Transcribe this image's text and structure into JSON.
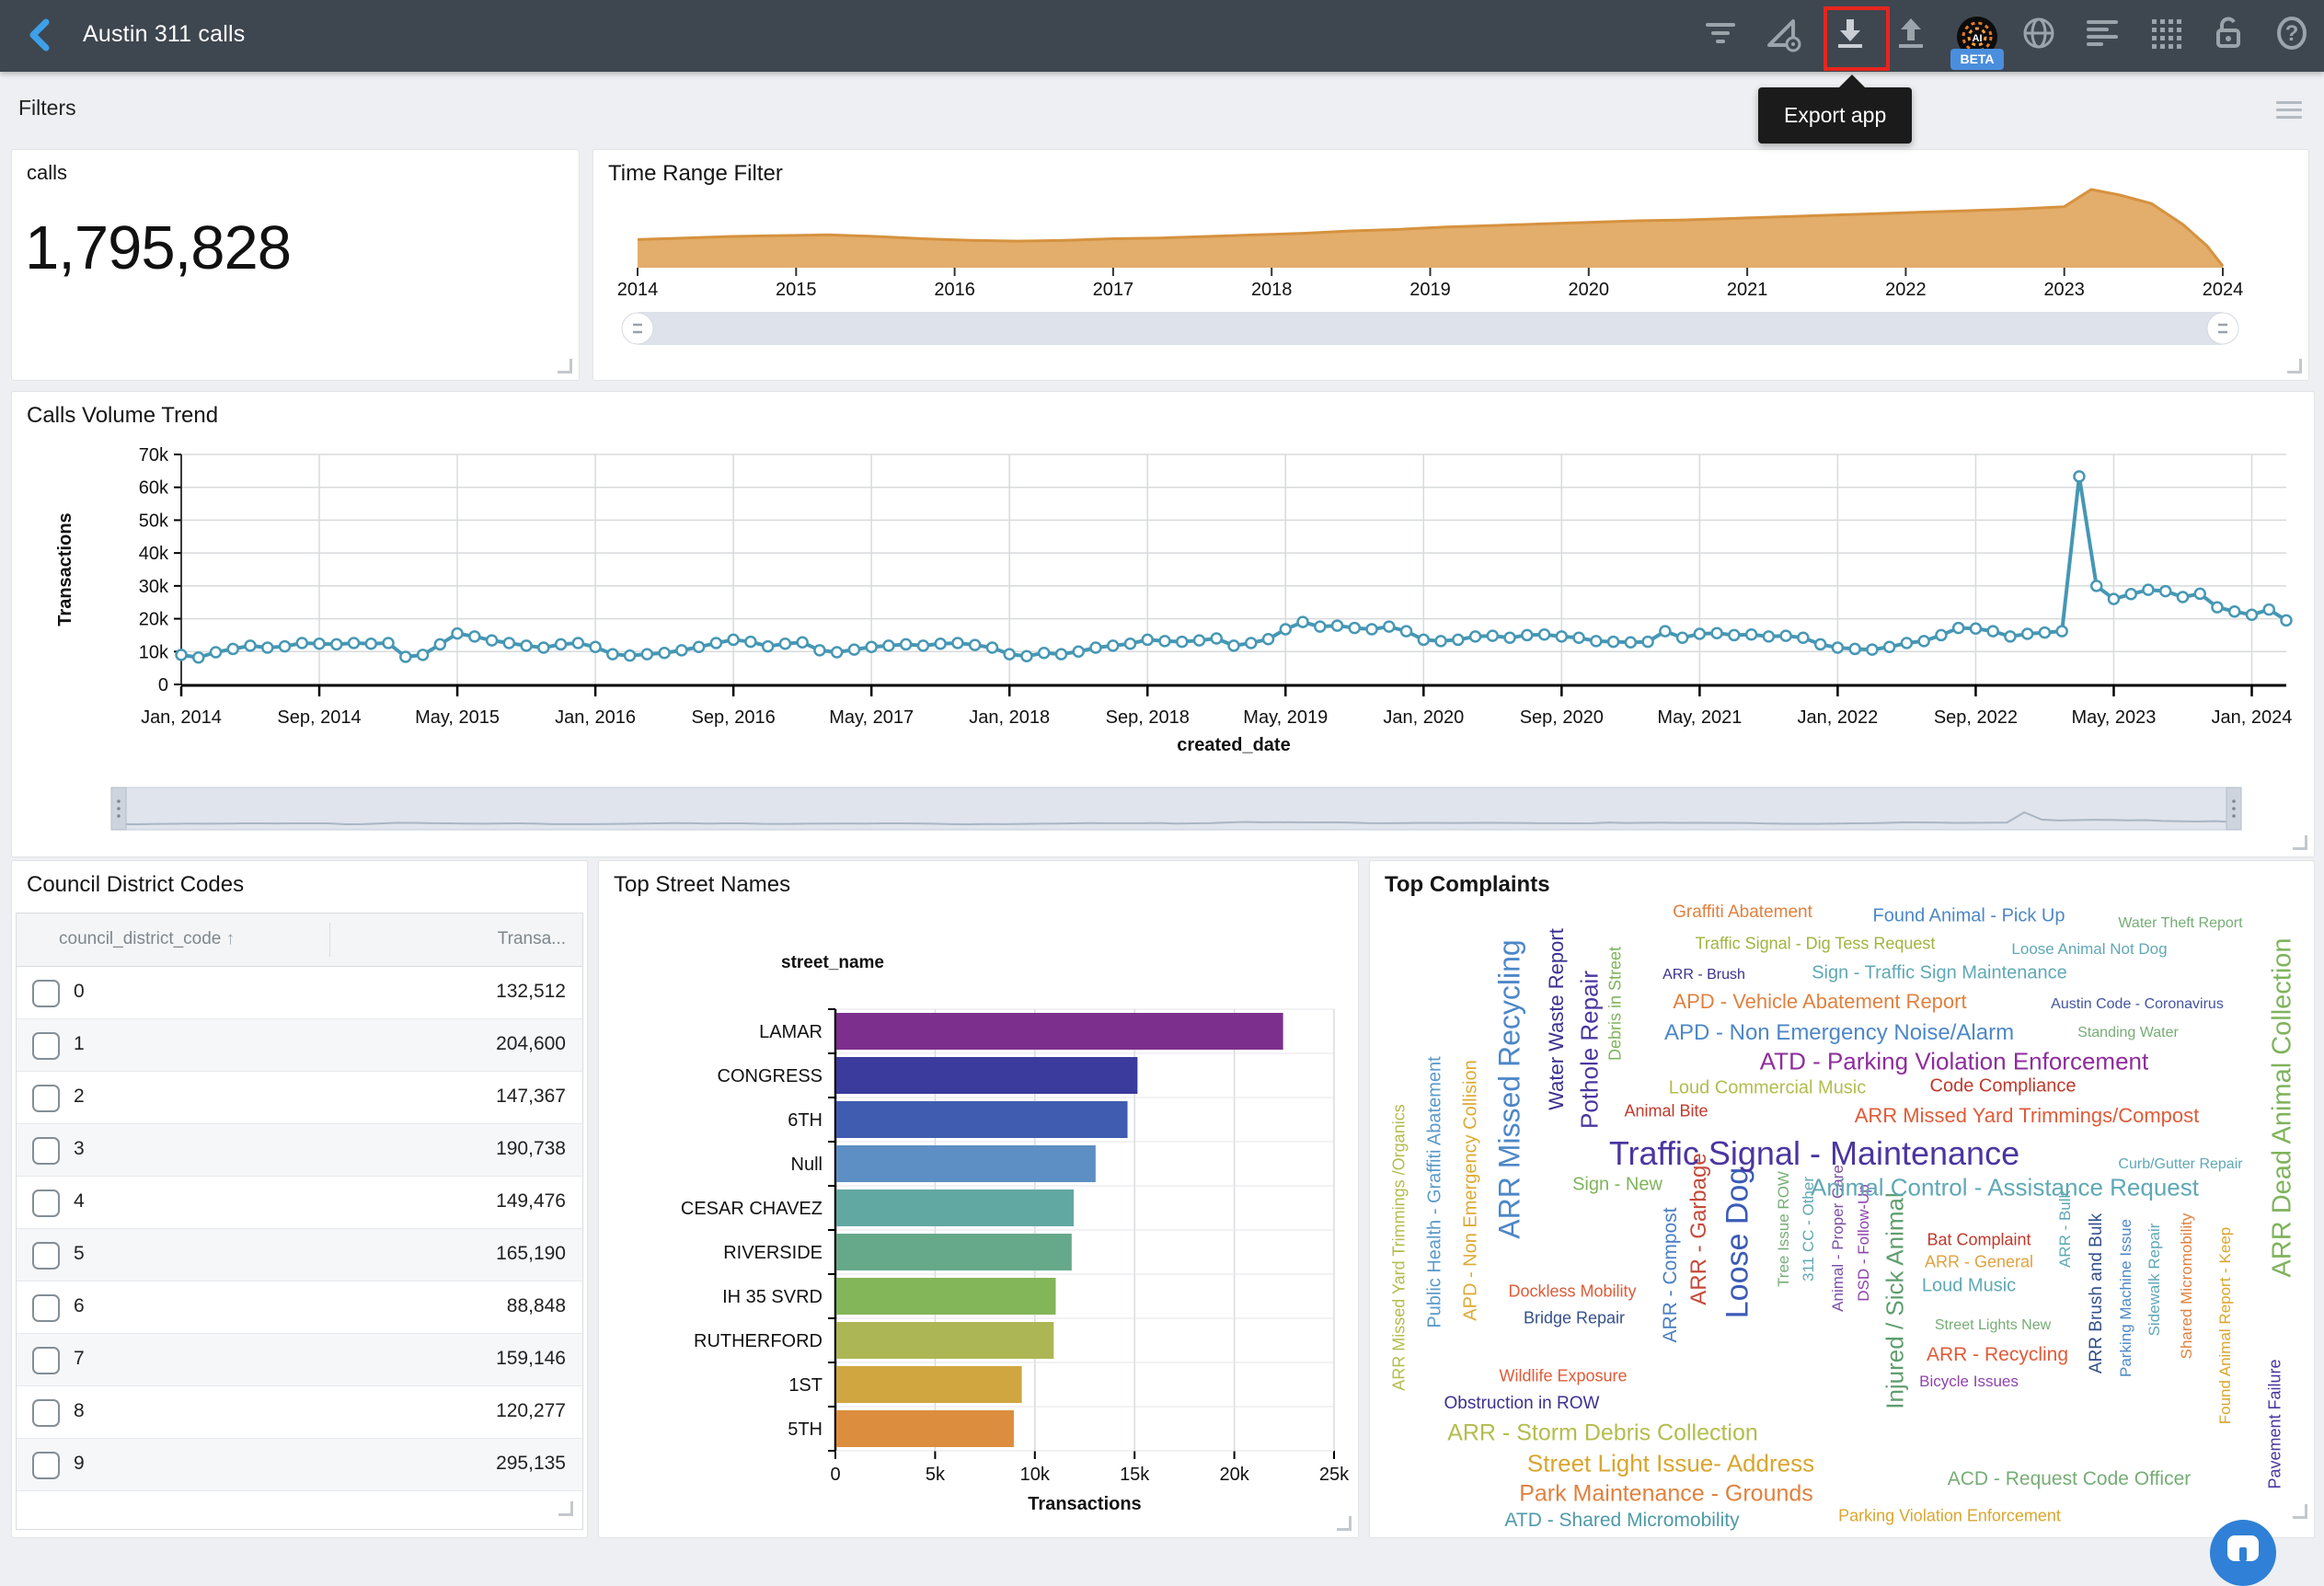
{
  "header": {
    "title": "Austin 311 calls",
    "tooltip": "Export app",
    "beta_label": "BETA",
    "bar_color": "#3e4650",
    "accent_color": "#3da0e8",
    "highlight_color": "#e8251d",
    "icons": [
      "filter-icon",
      "measure-settings-icon",
      "download-icon",
      "upload-icon",
      "ai-logo",
      "globe-icon",
      "align-left-icon",
      "grid-dots-icon",
      "lock-open-icon",
      "help-icon"
    ]
  },
  "filters_bar": {
    "label": "Filters",
    "menu_icon": "hamburger-icon"
  },
  "panels": {
    "kpi": {
      "title": "calls",
      "value": "1,795,828"
    },
    "time_range": {
      "title": "Time Range Filter"
    },
    "volume": {
      "title": "Calls Volume Trend"
    },
    "council": {
      "title": "Council District Codes",
      "columns": [
        "council_district_code",
        "Transa..."
      ],
      "sort_icon": "sort-ascending-icon",
      "rows": [
        {
          "code": "0",
          "transactions": "132,512"
        },
        {
          "code": "1",
          "transactions": "204,600"
        },
        {
          "code": "2",
          "transactions": "147,367"
        },
        {
          "code": "3",
          "transactions": "190,738"
        },
        {
          "code": "4",
          "transactions": "149,476"
        },
        {
          "code": "5",
          "transactions": "165,190"
        },
        {
          "code": "6",
          "transactions": "88,848"
        },
        {
          "code": "7",
          "transactions": "159,146"
        },
        {
          "code": "8",
          "transactions": "120,277"
        },
        {
          "code": "9",
          "transactions": "295,135"
        }
      ]
    },
    "streets": {
      "title": "Top Street Names"
    },
    "complaints": {
      "title": "Top Complaints"
    }
  },
  "chart_data": [
    {
      "type": "area",
      "name": "time-range-filter",
      "title": "Time Range Filter",
      "x_tick_labels": [
        "2014",
        "2015",
        "2016",
        "2017",
        "2018",
        "2019",
        "2020",
        "2021",
        "2022",
        "2023",
        "2024"
      ],
      "x_domain": [
        2014,
        2024
      ],
      "fill_color": "#e2a963",
      "line_color": "#d6923f",
      "profile": [
        [
          0,
          0.36
        ],
        [
          0.3,
          0.38
        ],
        [
          0.6,
          0.4
        ],
        [
          0.9,
          0.41
        ],
        [
          1.2,
          0.42
        ],
        [
          1.5,
          0.4
        ],
        [
          1.8,
          0.37
        ],
        [
          2.1,
          0.35
        ],
        [
          2.4,
          0.34
        ],
        [
          2.7,
          0.35
        ],
        [
          3.0,
          0.37
        ],
        [
          3.3,
          0.38
        ],
        [
          3.6,
          0.4
        ],
        [
          3.9,
          0.42
        ],
        [
          4.2,
          0.44
        ],
        [
          4.5,
          0.47
        ],
        [
          4.8,
          0.49
        ],
        [
          5.1,
          0.52
        ],
        [
          5.4,
          0.54
        ],
        [
          5.7,
          0.56
        ],
        [
          6.0,
          0.58
        ],
        [
          6.3,
          0.6
        ],
        [
          6.6,
          0.61
        ],
        [
          6.9,
          0.63
        ],
        [
          7.2,
          0.65
        ],
        [
          7.5,
          0.67
        ],
        [
          7.8,
          0.69
        ],
        [
          8.1,
          0.71
        ],
        [
          8.4,
          0.73
        ],
        [
          8.7,
          0.75
        ],
        [
          9.0,
          0.78
        ],
        [
          9.17,
          1.0
        ],
        [
          9.35,
          0.93
        ],
        [
          9.55,
          0.82
        ],
        [
          9.75,
          0.55
        ],
        [
          9.9,
          0.28
        ],
        [
          10,
          0.02
        ]
      ]
    },
    {
      "type": "line",
      "name": "calls-volume-trend",
      "title": "Calls Volume Trend",
      "ylabel": "Transactions",
      "xlabel": "created_date",
      "ylim": [
        0,
        70000
      ],
      "y_tick_labels": [
        "0",
        "10k",
        "20k",
        "30k",
        "40k",
        "50k",
        "60k",
        "70k"
      ],
      "x_start": "2014-01",
      "x_interval": "month",
      "x_tick_labels": [
        "Jan, 2014",
        "Sep, 2014",
        "May, 2015",
        "Jan, 2016",
        "Sep, 2016",
        "May, 2017",
        "Jan, 2018",
        "Sep, 2018",
        "May, 2019",
        "Jan, 2020",
        "Sep, 2020",
        "May, 2021",
        "Jan, 2022",
        "Sep, 2022",
        "May, 2023",
        "Jan, 2024"
      ],
      "color": "#4697b4",
      "values": [
        9000,
        8200,
        9800,
        10800,
        11800,
        11200,
        11600,
        12600,
        12400,
        12200,
        12600,
        12400,
        12600,
        8400,
        9000,
        12200,
        15500,
        14600,
        13400,
        12600,
        11800,
        11200,
        12200,
        12600,
        11400,
        9200,
        8800,
        9200,
        9600,
        10400,
        11400,
        12600,
        13600,
        13000,
        11600,
        12400,
        12800,
        10400,
        9800,
        10600,
        11400,
        11800,
        12200,
        11800,
        12400,
        12600,
        12000,
        11200,
        9200,
        8600,
        9600,
        9200,
        10000,
        11200,
        11800,
        12400,
        13600,
        13200,
        13000,
        13400,
        14000,
        11800,
        12600,
        13800,
        16800,
        19000,
        17600,
        17900,
        17200,
        16800,
        17600,
        16200,
        13600,
        13200,
        13600,
        14600,
        14800,
        14200,
        15000,
        15200,
        14600,
        14200,
        13200,
        13000,
        12800,
        13000,
        16200,
        14200,
        15400,
        15600,
        15000,
        15200,
        14600,
        14800,
        14200,
        12200,
        11200,
        10800,
        10600,
        11400,
        12600,
        13200,
        15000,
        17200,
        17000,
        16200,
        14600,
        15400,
        15800,
        16200,
        63300,
        30000,
        26000,
        27500,
        28800,
        28400,
        26600,
        27600,
        23500,
        22200,
        21200,
        22800,
        19500
      ]
    },
    {
      "type": "bar",
      "name": "top-street-names",
      "title": "Top Street Names",
      "axis_title": "street_name",
      "xlabel": "Transactions",
      "xlim": [
        0,
        25000
      ],
      "x_tick_labels": [
        "0",
        "5k",
        "10k",
        "15k",
        "20k",
        "25k"
      ],
      "categories": [
        "LAMAR",
        "CONGRESS",
        "6TH",
        "Null",
        "CESAR CHAVEZ",
        "RIVERSIDE",
        "IH 35 SVRD",
        "RUTHERFORD",
        "1ST",
        "5TH"
      ],
      "values": [
        22400,
        15100,
        14600,
        13000,
        11900,
        11800,
        11000,
        10900,
        9300,
        8900
      ],
      "colors": [
        "#7d2f8d",
        "#3a3b9c",
        "#3f5cb0",
        "#5d8fc4",
        "#62a8a2",
        "#66a98a",
        "#83b559",
        "#adb654",
        "#d0a640",
        "#dc8e3e"
      ]
    },
    {
      "type": "wordcloud",
      "name": "top-complaints",
      "title": "Top Complaints",
      "words": [
        {
          "t": "ARR Missed Yard Trimmings /Organics",
          "c": "#b3bd4e",
          "s": 18,
          "x": 32,
          "y": 420,
          "r": 1
        },
        {
          "t": "Public Health - Graffiti Abatement",
          "c": "#5b9bc9",
          "s": 20,
          "x": 71,
          "y": 360,
          "r": 1
        },
        {
          "t": "APD - Non Emergency Collision",
          "c": "#ddaa33",
          "s": 20,
          "x": 110,
          "y": 358,
          "r": 1
        },
        {
          "t": "ARR Missed Recycling",
          "c": "#4d87c7",
          "s": 32,
          "x": 152,
          "y": 248,
          "r": 1
        },
        {
          "t": "Water Waste Report",
          "c": "#3b3191",
          "s": 22,
          "x": 203,
          "y": 172,
          "r": 1
        },
        {
          "t": "Pothole Repair",
          "c": "#4b35a0",
          "s": 26,
          "x": 239,
          "y": 205,
          "r": 1
        },
        {
          "t": "Debris in Street",
          "c": "#7fb35c",
          "s": 18,
          "x": 267,
          "y": 155,
          "r": 1
        },
        {
          "t": "ARR - Compost",
          "c": "#4a7ec2",
          "s": 21,
          "x": 327,
          "y": 450,
          "r": 1
        },
        {
          "t": "ARR - Garbage",
          "c": "#c44a3b",
          "s": 24,
          "x": 358,
          "y": 400,
          "r": 1
        },
        {
          "t": "Loose Dog",
          "c": "#3b5bb5",
          "s": 34,
          "x": 400,
          "y": 415,
          "r": 1
        },
        {
          "t": "Tree Issue ROW",
          "c": "#76ad76",
          "s": 17,
          "x": 450,
          "y": 400,
          "r": 1
        },
        {
          "t": "311 CC - Other",
          "c": "#5fa8b5",
          "s": 17,
          "x": 477,
          "y": 400,
          "r": 1
        },
        {
          "t": "Animal - Proper Care",
          "c": "#7b4fa6",
          "s": 17,
          "x": 509,
          "y": 410,
          "r": 1
        },
        {
          "t": "DSD - Follow-Up",
          "c": "#8e44ad",
          "s": 17,
          "x": 537,
          "y": 415,
          "r": 1
        },
        {
          "t": "Injured / Sick Animal",
          "c": "#5f9e6e",
          "s": 26,
          "x": 571,
          "y": 478,
          "r": 1
        },
        {
          "t": "ARR - Bulk",
          "c": "#5fa8b5",
          "s": 17,
          "x": 756,
          "y": 400,
          "r": 1
        },
        {
          "t": "ARR Brush and Bulk",
          "c": "#34518c",
          "s": 19,
          "x": 790,
          "y": 470,
          "r": 1
        },
        {
          "t": "Parking Machine Issue",
          "c": "#4d87c7",
          "s": 17,
          "x": 822,
          "y": 475,
          "r": 1
        },
        {
          "t": "Sidewalk Repair",
          "c": "#5fa8b5",
          "s": 17,
          "x": 853,
          "y": 455,
          "r": 1
        },
        {
          "t": "Shared Micromobility",
          "c": "#e0813f",
          "s": 17,
          "x": 888,
          "y": 462,
          "r": 1
        },
        {
          "t": "Found Animal Report - Keep",
          "c": "#d9a62e",
          "s": 17,
          "x": 930,
          "y": 505,
          "r": 1
        },
        {
          "t": "ARR Dead Animal Collection",
          "c": "#7fb35c",
          "s": 29,
          "x": 992,
          "y": 268,
          "r": 1
        },
        {
          "t": "Pavement Failure",
          "c": "#4b35a0",
          "s": 18,
          "x": 984,
          "y": 612,
          "r": 1
        },
        {
          "t": "Graffiti Abatement",
          "c": "#e0813f",
          "s": 19,
          "x": 405,
          "y": 56,
          "r": 0
        },
        {
          "t": "Found Animal - Pick Up",
          "c": "#4d87c7",
          "s": 20,
          "x": 651,
          "y": 60,
          "r": 0
        },
        {
          "t": "Water Theft Report",
          "c": "#76ad76",
          "s": 16,
          "x": 881,
          "y": 68,
          "r": 0
        },
        {
          "t": "Traffic Signal - Dig Tess Request",
          "c": "#a0b43f",
          "s": 18,
          "x": 484,
          "y": 90,
          "r": 0
        },
        {
          "t": "Loose Animal Not Dog",
          "c": "#5fa8b5",
          "s": 17,
          "x": 782,
          "y": 96,
          "r": 0
        },
        {
          "t": "ARR - Brush",
          "c": "#3b3191",
          "s": 16,
          "x": 363,
          "y": 124,
          "r": 0
        },
        {
          "t": "Sign - Traffic Sign Maintenance",
          "c": "#5fa8b5",
          "s": 20,
          "x": 619,
          "y": 122,
          "r": 0
        },
        {
          "t": "APD - Vehicle Abatement Report",
          "c": "#e0813f",
          "s": 22,
          "x": 489,
          "y": 153,
          "r": 0
        },
        {
          "t": "Austin Code - Coronavirus",
          "c": "#44549f",
          "s": 16,
          "x": 834,
          "y": 156,
          "r": 0
        },
        {
          "t": "APD - Non Emergency Noise/Alarm",
          "c": "#4d87c7",
          "s": 24,
          "x": 510,
          "y": 187,
          "r": 0
        },
        {
          "t": "Standing Water",
          "c": "#76ad76",
          "s": 16,
          "x": 824,
          "y": 187,
          "r": 0
        },
        {
          "t": "ATD - Parking Violation Enforcement",
          "c": "#8e2d9c",
          "s": 26,
          "x": 635,
          "y": 218,
          "r": 0
        },
        {
          "t": "Loud Commercial Music",
          "c": "#b3bd4e",
          "s": 20,
          "x": 432,
          "y": 247,
          "r": 0
        },
        {
          "t": "Code Compliance",
          "c": "#c0392b",
          "s": 20,
          "x": 688,
          "y": 245,
          "r": 0
        },
        {
          "t": "Animal Bite",
          "c": "#c0392b",
          "s": 18,
          "x": 322,
          "y": 272,
          "r": 0
        },
        {
          "t": "ARR Missed Yard Trimmings/Compost",
          "c": "#df5b38",
          "s": 22,
          "x": 714,
          "y": 277,
          "r": 0
        },
        {
          "t": "Traffic Signal - Maintenance",
          "c": "#4b35a0",
          "s": 36,
          "x": 483,
          "y": 318,
          "r": 0
        },
        {
          "t": "Curb/Gutter Repair",
          "c": "#5fa8b5",
          "s": 16,
          "x": 881,
          "y": 330,
          "r": 0
        },
        {
          "t": "Sign - New",
          "c": "#7fb35c",
          "s": 20,
          "x": 269,
          "y": 352,
          "r": 0
        },
        {
          "t": "Animal Control - Assistance Request",
          "c": "#5fa8b5",
          "s": 26,
          "x": 690,
          "y": 355,
          "r": 0
        },
        {
          "t": "Bat Complaint",
          "c": "#c0392b",
          "s": 18,
          "x": 662,
          "y": 412,
          "r": 0
        },
        {
          "t": "ARR - General",
          "c": "#e0a23f",
          "s": 18,
          "x": 662,
          "y": 436,
          "r": 0
        },
        {
          "t": "Loud Music",
          "c": "#5fa8b5",
          "s": 20,
          "x": 651,
          "y": 462,
          "r": 0
        },
        {
          "t": "Dockless Mobility",
          "c": "#df5b38",
          "s": 18,
          "x": 220,
          "y": 468,
          "r": 0
        },
        {
          "t": "Bridge Repair",
          "c": "#34518c",
          "s": 18,
          "x": 222,
          "y": 497,
          "r": 0
        },
        {
          "t": "Street Lights New",
          "c": "#76ad76",
          "s": 16,
          "x": 677,
          "y": 505,
          "r": 0
        },
        {
          "t": "ARR - Recycling",
          "c": "#df5b38",
          "s": 21,
          "x": 682,
          "y": 537,
          "r": 0
        },
        {
          "t": "Bicycle Issues",
          "c": "#8e44ad",
          "s": 17,
          "x": 651,
          "y": 566,
          "r": 0
        },
        {
          "t": "Wildlife Exposure",
          "c": "#df5b38",
          "s": 18,
          "x": 210,
          "y": 560,
          "r": 0
        },
        {
          "t": "Obstruction in ROW",
          "c": "#3b3191",
          "s": 19,
          "x": 165,
          "y": 590,
          "r": 0
        },
        {
          "t": "ARR - Storm Debris Collection",
          "c": "#b3bd4e",
          "s": 25,
          "x": 253,
          "y": 622,
          "r": 0
        },
        {
          "t": "Street Light Issue- Address",
          "c": "#d9a62e",
          "s": 26,
          "x": 327,
          "y": 655,
          "r": 0
        },
        {
          "t": "Park Maintenance - Grounds",
          "c": "#e0813f",
          "s": 25,
          "x": 322,
          "y": 688,
          "r": 0
        },
        {
          "t": "ATD - Shared Micromobility",
          "c": "#4f9aa8",
          "s": 21,
          "x": 274,
          "y": 717,
          "r": 0
        },
        {
          "t": "Parking Violation Enforcement",
          "c": "#d9a62e",
          "s": 18,
          "x": 630,
          "y": 712,
          "r": 0
        },
        {
          "t": "ACD - Request Code Officer",
          "c": "#76ad76",
          "s": 21,
          "x": 760,
          "y": 672,
          "r": 0
        }
      ]
    }
  ],
  "fab": {
    "name": "chat-button",
    "color": "#2f80d6"
  }
}
